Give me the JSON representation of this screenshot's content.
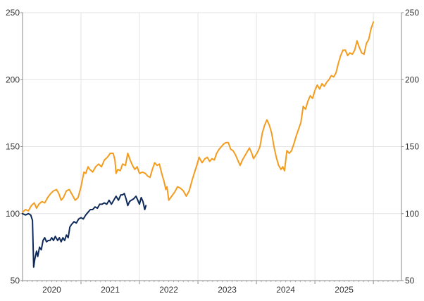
{
  "chart_data": {
    "type": "line",
    "title": "",
    "xlabel": "",
    "ylabel": "",
    "grid": true,
    "legend": "none",
    "xlim": [
      2019.5,
      2025.98
    ],
    "ylim": [
      50,
      250
    ],
    "y_ticks": [
      50,
      100,
      150,
      200,
      250
    ],
    "y_tick_labels": [
      "50",
      "100",
      "150",
      "200",
      "250"
    ],
    "x_tick_labels": [
      {
        "label": "2020",
        "x": 2020.0
      },
      {
        "label": "2021",
        "x": 2021.0
      },
      {
        "label": "2022",
        "x": 2022.0
      },
      {
        "label": "2023",
        "x": 2023.0
      },
      {
        "label": "2024",
        "x": 2024.0
      },
      {
        "label": "2025",
        "x": 2025.0
      }
    ],
    "year_boundaries": [
      2020.5,
      2021.5,
      2022.5,
      2023.5,
      2024.5,
      2025.5
    ],
    "series": [
      {
        "color": "#f39c1e",
        "points": [
          [
            2019.5,
            101
          ],
          [
            2019.55,
            103
          ],
          [
            2019.6,
            102
          ],
          [
            2019.65,
            106
          ],
          [
            2019.7,
            108
          ],
          [
            2019.74,
            104
          ],
          [
            2019.78,
            107
          ],
          [
            2019.83,
            109
          ],
          [
            2019.88,
            108
          ],
          [
            2019.93,
            112
          ],
          [
            2019.98,
            115
          ],
          [
            2020.03,
            117
          ],
          [
            2020.08,
            118
          ],
          [
            2020.12,
            115
          ],
          [
            2020.16,
            110
          ],
          [
            2020.2,
            112
          ],
          [
            2020.25,
            117
          ],
          [
            2020.3,
            118
          ],
          [
            2020.35,
            114
          ],
          [
            2020.4,
            110
          ],
          [
            2020.45,
            112
          ],
          [
            2020.5,
            120
          ],
          [
            2020.55,
            131
          ],
          [
            2020.58,
            130
          ],
          [
            2020.62,
            135
          ],
          [
            2020.65,
            133
          ],
          [
            2020.7,
            131
          ],
          [
            2020.75,
            135
          ],
          [
            2020.8,
            137
          ],
          [
            2020.85,
            135
          ],
          [
            2020.9,
            140
          ],
          [
            2020.95,
            142
          ],
          [
            2021.0,
            145
          ],
          [
            2021.05,
            145
          ],
          [
            2021.08,
            140
          ],
          [
            2021.1,
            130
          ],
          [
            2021.13,
            133
          ],
          [
            2021.17,
            132
          ],
          [
            2021.21,
            137
          ],
          [
            2021.26,
            136
          ],
          [
            2021.3,
            145
          ],
          [
            2021.34,
            140
          ],
          [
            2021.38,
            136
          ],
          [
            2021.42,
            133
          ],
          [
            2021.46,
            135
          ],
          [
            2021.5,
            130
          ],
          [
            2021.55,
            131
          ],
          [
            2021.6,
            130
          ],
          [
            2021.64,
            128
          ],
          [
            2021.68,
            127
          ],
          [
            2021.72,
            133
          ],
          [
            2021.76,
            138
          ],
          [
            2021.8,
            136
          ],
          [
            2021.84,
            137
          ],
          [
            2021.88,
            130
          ],
          [
            2021.92,
            124
          ],
          [
            2021.95,
            118
          ],
          [
            2021.97,
            120
          ],
          [
            2022.0,
            110
          ],
          [
            2022.05,
            113
          ],
          [
            2022.1,
            116
          ],
          [
            2022.15,
            120
          ],
          [
            2022.2,
            119
          ],
          [
            2022.25,
            117
          ],
          [
            2022.3,
            113
          ],
          [
            2022.35,
            117
          ],
          [
            2022.4,
            125
          ],
          [
            2022.45,
            132
          ],
          [
            2022.48,
            136
          ],
          [
            2022.52,
            142
          ],
          [
            2022.57,
            138
          ],
          [
            2022.62,
            141
          ],
          [
            2022.66,
            142
          ],
          [
            2022.7,
            139
          ],
          [
            2022.74,
            141
          ],
          [
            2022.78,
            140
          ],
          [
            2022.82,
            145
          ],
          [
            2022.86,
            148
          ],
          [
            2022.9,
            150
          ],
          [
            2022.94,
            152
          ],
          [
            2022.98,
            153
          ],
          [
            2023.02,
            153
          ],
          [
            2023.06,
            148
          ],
          [
            2023.1,
            147
          ],
          [
            2023.14,
            144
          ],
          [
            2023.18,
            140
          ],
          [
            2023.22,
            136
          ],
          [
            2023.26,
            140
          ],
          [
            2023.3,
            143
          ],
          [
            2023.34,
            146
          ],
          [
            2023.38,
            149
          ],
          [
            2023.42,
            145
          ],
          [
            2023.45,
            141
          ],
          [
            2023.48,
            143
          ],
          [
            2023.52,
            146
          ],
          [
            2023.56,
            150
          ],
          [
            2023.6,
            160
          ],
          [
            2023.64,
            166
          ],
          [
            2023.68,
            170
          ],
          [
            2023.72,
            166
          ],
          [
            2023.76,
            160
          ],
          [
            2023.8,
            150
          ],
          [
            2023.84,
            142
          ],
          [
            2023.88,
            136
          ],
          [
            2023.92,
            133
          ],
          [
            2023.95,
            135
          ],
          [
            2023.98,
            132
          ],
          [
            2024.02,
            147
          ],
          [
            2024.06,
            145
          ],
          [
            2024.1,
            147
          ],
          [
            2024.14,
            152
          ],
          [
            2024.18,
            158
          ],
          [
            2024.22,
            163
          ],
          [
            2024.26,
            168
          ],
          [
            2024.3,
            180
          ],
          [
            2024.34,
            178
          ],
          [
            2024.38,
            184
          ],
          [
            2024.42,
            188
          ],
          [
            2024.46,
            186
          ],
          [
            2024.5,
            192
          ],
          [
            2024.54,
            196
          ],
          [
            2024.58,
            193
          ],
          [
            2024.62,
            197
          ],
          [
            2024.66,
            195
          ],
          [
            2024.7,
            198
          ],
          [
            2024.74,
            200
          ],
          [
            2024.78,
            203
          ],
          [
            2024.82,
            202
          ],
          [
            2024.86,
            205
          ],
          [
            2024.9,
            212
          ],
          [
            2024.94,
            218
          ],
          [
            2024.98,
            222
          ],
          [
            2025.02,
            222
          ],
          [
            2025.06,
            218
          ],
          [
            2025.1,
            220
          ],
          [
            2025.14,
            219
          ],
          [
            2025.18,
            222
          ],
          [
            2025.22,
            229
          ],
          [
            2025.26,
            224
          ],
          [
            2025.3,
            220
          ],
          [
            2025.34,
            219
          ],
          [
            2025.38,
            227
          ],
          [
            2025.42,
            230
          ],
          [
            2025.46,
            238
          ],
          [
            2025.5,
            243
          ]
        ]
      },
      {
        "color": "#0e2a5a",
        "points": [
          [
            2019.5,
            100
          ],
          [
            2019.55,
            99
          ],
          [
            2019.6,
            100
          ],
          [
            2019.64,
            99
          ],
          [
            2019.67,
            95
          ],
          [
            2019.69,
            60
          ],
          [
            2019.71,
            66
          ],
          [
            2019.74,
            72
          ],
          [
            2019.76,
            68
          ],
          [
            2019.79,
            75
          ],
          [
            2019.82,
            73
          ],
          [
            2019.85,
            80
          ],
          [
            2019.88,
            82
          ],
          [
            2019.91,
            79
          ],
          [
            2019.94,
            80
          ],
          [
            2019.97,
            80
          ],
          [
            2020.0,
            82
          ],
          [
            2020.03,
            80
          ],
          [
            2020.06,
            83
          ],
          [
            2020.1,
            80
          ],
          [
            2020.13,
            82
          ],
          [
            2020.16,
            79
          ],
          [
            2020.19,
            82
          ],
          [
            2020.22,
            80
          ],
          [
            2020.25,
            84
          ],
          [
            2020.28,
            82
          ],
          [
            2020.31,
            90
          ],
          [
            2020.34,
            92
          ],
          [
            2020.38,
            94
          ],
          [
            2020.42,
            93
          ],
          [
            2020.46,
            96
          ],
          [
            2020.5,
            97
          ],
          [
            2020.54,
            96
          ],
          [
            2020.58,
            99
          ],
          [
            2020.62,
            101
          ],
          [
            2020.66,
            103
          ],
          [
            2020.7,
            103
          ],
          [
            2020.74,
            105
          ],
          [
            2020.78,
            104
          ],
          [
            2020.82,
            107
          ],
          [
            2020.86,
            107
          ],
          [
            2020.9,
            108
          ],
          [
            2020.94,
            107
          ],
          [
            2020.98,
            110
          ],
          [
            2021.02,
            107
          ],
          [
            2021.06,
            110
          ],
          [
            2021.1,
            113
          ],
          [
            2021.14,
            110
          ],
          [
            2021.18,
            114
          ],
          [
            2021.21,
            114
          ],
          [
            2021.24,
            115
          ],
          [
            2021.27,
            111
          ],
          [
            2021.3,
            106
          ],
          [
            2021.33,
            109
          ],
          [
            2021.36,
            110
          ],
          [
            2021.4,
            111
          ],
          [
            2021.44,
            113
          ],
          [
            2021.47,
            110
          ],
          [
            2021.5,
            107
          ],
          [
            2021.53,
            112
          ],
          [
            2021.56,
            109
          ],
          [
            2021.59,
            103
          ],
          [
            2021.61,
            106
          ]
        ]
      }
    ]
  }
}
